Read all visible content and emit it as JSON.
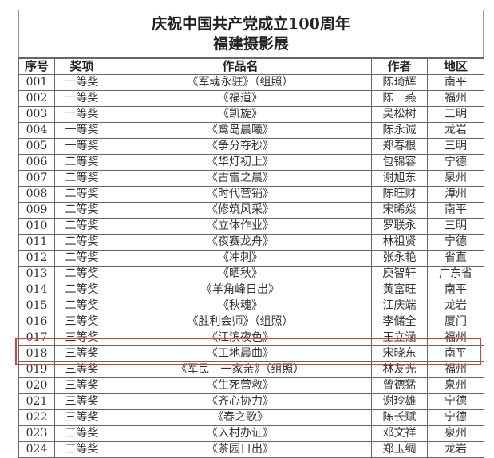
{
  "title": {
    "line1": "庆祝中国共产党成立100周年",
    "line2": "福建摄影展"
  },
  "headers": [
    "序号",
    "奖项",
    "作品名",
    "作者",
    "地区"
  ],
  "rows": [
    [
      "001",
      "一等奖",
      "《军魂永驻》（组照）",
      "陈琦辉",
      "南平"
    ],
    [
      "002",
      "一等奖",
      "《福道》",
      "陈　燕",
      "福州"
    ],
    [
      "003",
      "一等奖",
      "《凯旋》",
      "吴松树",
      "三明"
    ],
    [
      "004",
      "一等奖",
      "《鹭岛晨曦》",
      "陈永诚",
      "龙岩"
    ],
    [
      "005",
      "一等奖",
      "《争分夺秒》",
      "郑春根",
      "三明"
    ],
    [
      "006",
      "二等奖",
      "《华灯初上》",
      "包锦容",
      "宁德"
    ],
    [
      "007",
      "二等奖",
      "《古雷之晨》",
      "谢旭东",
      "泉州"
    ],
    [
      "008",
      "二等奖",
      "《时代营销》",
      "陈旺财",
      "漳州"
    ],
    [
      "009",
      "二等奖",
      "《修筑风采》",
      "宋晞焱",
      "南平"
    ],
    [
      "010",
      "二等奖",
      "《立体作业》",
      "罗联永",
      "三明"
    ],
    [
      "011",
      "二等奖",
      "《夜赛龙舟》",
      "林祖贤",
      "宁德"
    ],
    [
      "012",
      "二等奖",
      "《冲刺》",
      "张永艳",
      "省直"
    ],
    [
      "013",
      "二等奖",
      "《晒秋》",
      "庾智轩",
      "广东省"
    ],
    [
      "014",
      "二等奖",
      "《羊角峰日出》",
      "黄富旺",
      "南平"
    ],
    [
      "015",
      "二等奖",
      "《秋魂》",
      "江庆端",
      "龙岩"
    ],
    [
      "016",
      "三等奖",
      "《胜利会师》（组照）",
      "李储全",
      "厦门"
    ],
    [
      "017",
      "三等奖",
      "《江滨夜色》",
      "王立涵",
      "福州"
    ],
    [
      "018",
      "三等奖",
      "《工地晨曲》",
      "宋晓东",
      "南平"
    ],
    [
      "019",
      "三等奖",
      "《军民　一家亲》（组照）",
      "林友光",
      "福州"
    ],
    [
      "020",
      "三等奖",
      "《生死营救》",
      "曾德猛",
      "泉州"
    ],
    [
      "021",
      "三等奖",
      "《齐心协力》",
      "谢玲雄",
      "宁德"
    ],
    [
      "022",
      "三等奖",
      "《春之歌》",
      "陈长赋",
      "宁德"
    ],
    [
      "023",
      "三等奖",
      "《入村办证》",
      "邓文祥",
      "泉州"
    ],
    [
      "024",
      "三等奖",
      "《茶园日出》",
      "郑玉绸",
      "龙岩"
    ]
  ],
  "highlight": {
    "row": "018",
    "color": "#e53935"
  }
}
